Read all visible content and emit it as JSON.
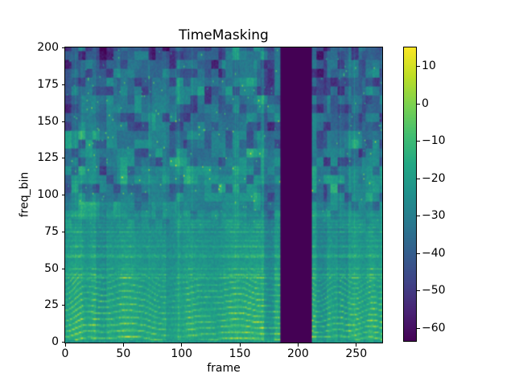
{
  "figure": {
    "title": "TimeMasking",
    "xlabel": "frame",
    "ylabel": "freq_bin",
    "background": "#ffffff"
  },
  "chart_data": {
    "type": "heatmap",
    "title": "TimeMasking",
    "xlabel": "frame",
    "ylabel": "freq_bin",
    "colormap": "viridis",
    "n_frames": 273,
    "n_freq_bins": 201,
    "xlim": [
      0,
      273
    ],
    "ylim": [
      0,
      201
    ],
    "x_ticks": [
      0,
      50,
      100,
      150,
      200,
      250
    ],
    "y_ticks": [
      0,
      25,
      50,
      75,
      100,
      125,
      150,
      175,
      200
    ],
    "value_range_db": [
      -63.6,
      15.3
    ],
    "colorbar_ticks": [
      10,
      0,
      -10,
      -20,
      -30,
      -40,
      -50,
      -60
    ],
    "time_mask": {
      "start_frame": 185,
      "end_frame": 211,
      "width_frames": 27,
      "fill": "minimum"
    },
    "grid": false,
    "legend": "none",
    "colors": {
      "mask_fill": "#440154",
      "axes_edge": "#000000",
      "text": "#000000",
      "background": "#ffffff"
    },
    "content_summary": "Log-power audio spectrogram in dB; bright harmonic stripes below bin ~50, blocky dark texture above bin ~100, vertical masked band of minimum values at frames 185-211."
  }
}
